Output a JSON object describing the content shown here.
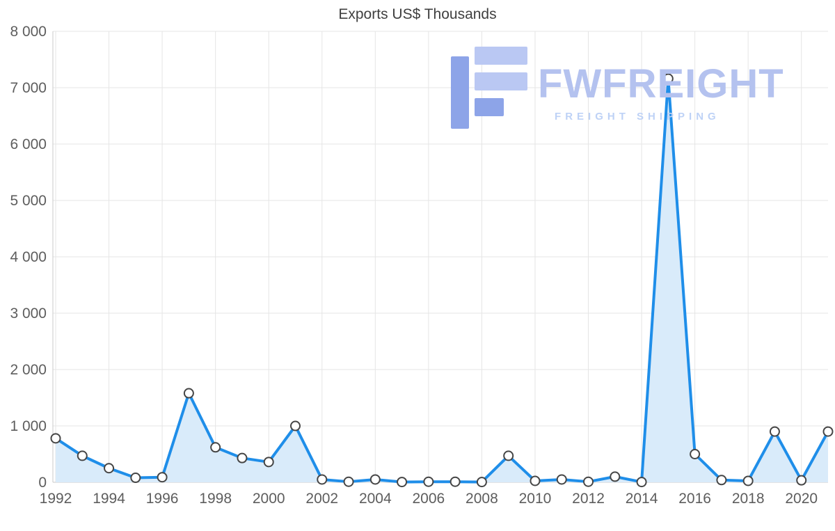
{
  "page": {
    "background": "#ffffff"
  },
  "watermark": {
    "brand": "FWFREIGHT",
    "tagline": "FREIGHT SHIPPING",
    "brand_color": "#b4c2ef",
    "tagline_color": "#bed2f6",
    "logo_dark": "#8da4e8",
    "logo_light": "#bac8f3"
  },
  "chart_data": {
    "type": "area",
    "title": "Exports US$ Thousands",
    "x": [
      1992,
      1993,
      1994,
      1995,
      1996,
      1997,
      1998,
      1999,
      2000,
      2001,
      2002,
      2003,
      2004,
      2005,
      2006,
      2007,
      2008,
      2009,
      2010,
      2011,
      2012,
      2013,
      2014,
      2015,
      2016,
      2017,
      2018,
      2019,
      2020,
      2021
    ],
    "values": [
      780,
      470,
      250,
      80,
      90,
      1580,
      620,
      430,
      360,
      1000,
      50,
      10,
      50,
      5,
      10,
      10,
      5,
      470,
      25,
      50,
      10,
      100,
      5,
      7160,
      500,
      40,
      25,
      900,
      35,
      900
    ],
    "xlabel": "",
    "ylabel": "",
    "ylim": [
      0,
      8000
    ],
    "y_ticks": [
      0,
      1000,
      2000,
      3000,
      4000,
      5000,
      6000,
      7000,
      8000
    ],
    "y_tick_labels": [
      "0",
      "1 000",
      "2 000",
      "3 000",
      "4 000",
      "5 000",
      "6 000",
      "7 000",
      "8 000"
    ],
    "x_ticks": [
      1992,
      1994,
      1996,
      1998,
      2000,
      2002,
      2004,
      2006,
      2008,
      2010,
      2012,
      2014,
      2016,
      2018,
      2020
    ],
    "grid": true,
    "legend_position": "none",
    "line_color": "#1f8ee9",
    "fill_color": "#d9ebfa",
    "marker_fill": "#ffffff",
    "marker_stroke": "#454545",
    "axis_label_color": "#5d5d5d",
    "grid_color": "#e5e5e5",
    "axis_line_color": "#c9c9c9"
  }
}
